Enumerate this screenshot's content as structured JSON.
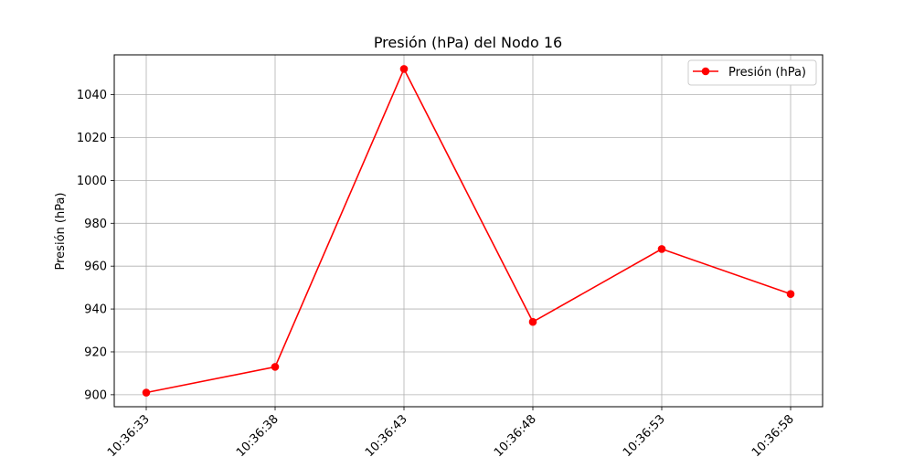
{
  "chart_data": {
    "type": "line",
    "title": "Presión (hPa) del Nodo 16",
    "xlabel": "",
    "ylabel": "Presión (hPa)",
    "categories": [
      "10:36:33",
      "10:36:38",
      "10:36:43",
      "10:36:48",
      "10:36:53",
      "10:36:58"
    ],
    "series": [
      {
        "name": "Presión (hPa)",
        "values": [
          901,
          913,
          1052,
          934,
          968,
          947
        ],
        "color": "#ff0000",
        "marker": "circle"
      }
    ],
    "yticks": [
      900,
      920,
      940,
      960,
      980,
      1000,
      1020,
      1040
    ],
    "ylim": [
      894.4,
      1058.6
    ],
    "grid": true,
    "legend_position": "top-right",
    "xtick_rotation": "45°"
  }
}
